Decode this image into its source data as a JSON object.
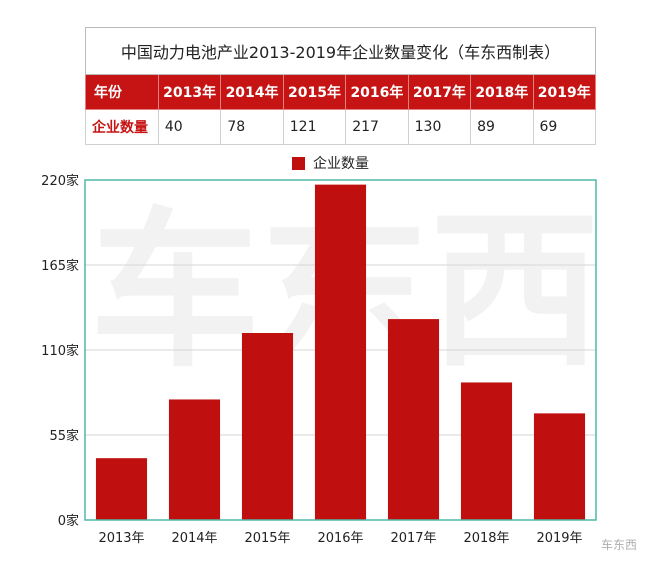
{
  "table": {
    "title": "中国动力电池产业2013-2019年企业数量变化（车东西制表）",
    "row_header_year": "年份",
    "row_header_count": "企业数量",
    "years": [
      "2013年",
      "2014年",
      "2015年",
      "2016年",
      "2017年",
      "2018年",
      "2019年"
    ],
    "counts": [
      "40",
      "78",
      "121",
      "217",
      "130",
      "89",
      "69"
    ]
  },
  "chart_data": {
    "type": "bar",
    "categories": [
      "2013年",
      "2014年",
      "2015年",
      "2016年",
      "2017年",
      "2018年",
      "2019年"
    ],
    "series": [
      {
        "name": "企业数量",
        "values": [
          40,
          78,
          121,
          217,
          130,
          89,
          69
        ]
      }
    ],
    "ylim": [
      0,
      220
    ],
    "yticks": [
      0,
      55,
      110,
      165,
      220
    ],
    "ytick_labels": [
      "0家",
      "55家",
      "110家",
      "165家",
      "220家"
    ],
    "legend": "top-center",
    "grid": true,
    "bar_color": "#c00f0f",
    "frame_color": "#4fb8a8"
  },
  "watermark": {
    "text": "车东西",
    "corner_text": "车东西"
  }
}
